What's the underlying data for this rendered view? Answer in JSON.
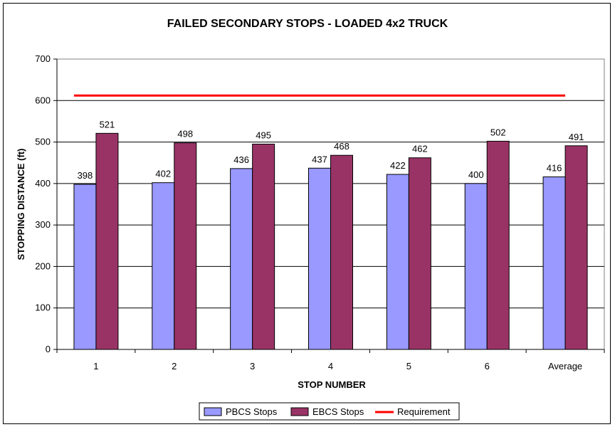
{
  "chart_data": {
    "type": "bar",
    "title": "FAILED SECONDARY STOPS - LOADED 4x2 TRUCK",
    "xlabel": "STOP NUMBER",
    "ylabel": "STOPPING DISTANCE (ft)",
    "ylim": [
      0,
      700
    ],
    "yticks": [
      0,
      100,
      200,
      300,
      400,
      500,
      600,
      700
    ],
    "categories": [
      "1",
      "2",
      "3",
      "4",
      "5",
      "6",
      "Average"
    ],
    "series": [
      {
        "name": "PBCS Stops",
        "color": "#9999ff",
        "values": [
          398,
          402,
          436,
          437,
          422,
          400,
          416
        ]
      },
      {
        "name": "EBCS Stops",
        "color": "#993366",
        "values": [
          521,
          498,
          495,
          468,
          462,
          502,
          491
        ]
      }
    ],
    "reference_line": {
      "name": "Requirement",
      "color": "#ff0000",
      "value": 612
    },
    "grid": true,
    "legend_position": "bottom"
  }
}
